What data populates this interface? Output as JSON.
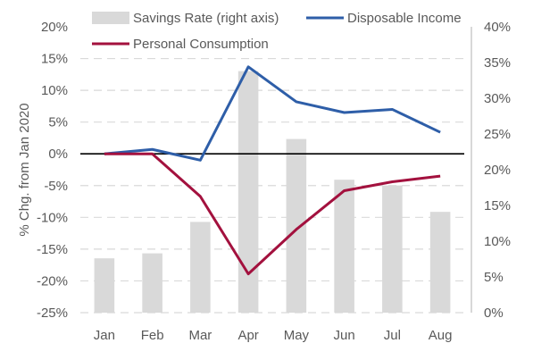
{
  "chart_data": {
    "type": "bar",
    "title": "",
    "categories": [
      "Jan",
      "Feb",
      "Mar",
      "Apr",
      "May",
      "Jun",
      "Jul",
      "Aug"
    ],
    "ylabel_left": "% Chg. from Jan 2020",
    "ylabel_right": "",
    "ylim_left": [
      -25,
      20
    ],
    "ylim_right": [
      0,
      40
    ],
    "yticks_left": [
      -25,
      -20,
      -15,
      -10,
      -5,
      0,
      5,
      10,
      15,
      20
    ],
    "yticks_right": [
      0,
      5,
      10,
      15,
      20,
      25,
      30,
      35,
      40
    ],
    "ytick_labels_left": [
      "-25%",
      "-20%",
      "-15%",
      "-10%",
      "-5%",
      "0%",
      "5%",
      "10%",
      "15%",
      "20%"
    ],
    "ytick_labels_right": [
      "0%",
      "5%",
      "10%",
      "15%",
      "20%",
      "25%",
      "30%",
      "35%",
      "40%"
    ],
    "grid": true,
    "legend_position": "top",
    "series": [
      {
        "name": "Savings Rate (right axis)",
        "type": "bar",
        "axis": "right",
        "color": "#d9d9d9",
        "values": [
          7.6,
          8.3,
          12.7,
          33.8,
          24.3,
          18.6,
          17.8,
          14.1
        ]
      },
      {
        "name": "Disposable Income",
        "type": "line",
        "axis": "left",
        "color": "#2e5ea8",
        "values": [
          0,
          0.7,
          -1.0,
          13.7,
          8.2,
          6.5,
          7.0,
          3.4
        ]
      },
      {
        "name": "Personal Consumption",
        "type": "line",
        "axis": "left",
        "color": "#a3113e",
        "values": [
          0,
          0,
          -6.7,
          -18.9,
          -11.9,
          -5.8,
          -4.4,
          -3.5
        ]
      }
    ]
  }
}
